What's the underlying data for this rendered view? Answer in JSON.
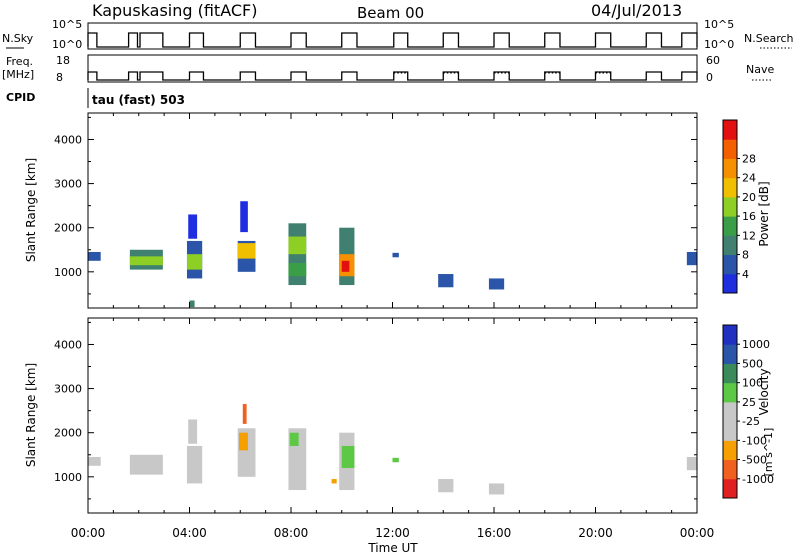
{
  "header": {
    "station": "Kapuskasing (fitACF)",
    "beam": "Beam 00",
    "date": "04/Jul/2013"
  },
  "top_panels": {
    "nsky_label": "N.Sky",
    "nsky_ticks": [
      "10^5",
      "10^0"
    ],
    "nsearch_label": "N.Search",
    "nsearch_ticks": [
      "10^5",
      "10^0"
    ],
    "freq_label": "Freq.",
    "freq_unit": "[MHz]",
    "freq_ticks": [
      "18",
      "8"
    ],
    "nave_label": "Nave",
    "nave_ticks": [
      "60",
      "0"
    ],
    "cpid_label": "CPID",
    "cpid_value": "tau (fast) 503"
  },
  "colors": {
    "power": [
      "#1f2fe0",
      "#2a55a8",
      "#3f8070",
      "#3a9d48",
      "#8ecf25",
      "#f0c000",
      "#f59000",
      "#f46000",
      "#e21010"
    ],
    "velocity": [
      "#e02020",
      "#f06020",
      "#f5a000",
      "#c8c8c8",
      "#c8c8c8",
      "#5cc845",
      "#3a8a5a",
      "#2a55a8",
      "#2030c0"
    ]
  },
  "chart_data": [
    {
      "type": "heatmap",
      "name": "power",
      "ylabel": "Slant Range [km]",
      "yticks": [
        "1000",
        "2000",
        "3000",
        "4000"
      ],
      "ylim": [
        180,
        4600
      ],
      "xlim": [
        0,
        24
      ],
      "colorbar_label": "Power [dB]",
      "colorbar_ticks": [
        "4",
        "8",
        "12",
        "16",
        "20",
        "24",
        "28"
      ],
      "patches": [
        {
          "x0": 0.0,
          "x1": 0.5,
          "r0": 1250,
          "r1": 1450,
          "c": 1
        },
        {
          "x0": 1.65,
          "x1": 2.95,
          "r0": 1050,
          "r1": 1500,
          "c": 2
        },
        {
          "x0": 1.65,
          "x1": 2.95,
          "r0": 1150,
          "r1": 1350,
          "c": 4
        },
        {
          "x0": 3.9,
          "x1": 4.5,
          "r0": 850,
          "r1": 1700,
          "c": 1
        },
        {
          "x0": 3.9,
          "x1": 4.5,
          "r0": 1050,
          "r1": 1400,
          "c": 4
        },
        {
          "x0": 3.95,
          "x1": 4.3,
          "r0": 1750,
          "r1": 2300,
          "c": 0
        },
        {
          "x0": 5.9,
          "x1": 6.6,
          "r0": 1000,
          "r1": 1700,
          "c": 1
        },
        {
          "x0": 5.9,
          "x1": 6.6,
          "r0": 1300,
          "r1": 1650,
          "c": 5
        },
        {
          "x0": 6.0,
          "x1": 6.3,
          "r0": 1900,
          "r1": 2600,
          "c": 0
        },
        {
          "x0": 7.9,
          "x1": 8.6,
          "r0": 700,
          "r1": 2100,
          "c": 2
        },
        {
          "x0": 7.9,
          "x1": 8.6,
          "r0": 1400,
          "r1": 1800,
          "c": 4
        },
        {
          "x0": 7.9,
          "x1": 8.6,
          "r0": 900,
          "r1": 1200,
          "c": 3
        },
        {
          "x0": 9.9,
          "x1": 10.5,
          "r0": 700,
          "r1": 2000,
          "c": 2
        },
        {
          "x0": 9.9,
          "x1": 10.5,
          "r0": 900,
          "r1": 1400,
          "c": 6
        },
        {
          "x0": 10.0,
          "x1": 10.3,
          "r0": 1000,
          "r1": 1250,
          "c": 8
        },
        {
          "x0": 12.0,
          "x1": 12.25,
          "r0": 1330,
          "r1": 1430,
          "c": 1
        },
        {
          "x0": 13.8,
          "x1": 14.4,
          "r0": 650,
          "r1": 950,
          "c": 1
        },
        {
          "x0": 15.8,
          "x1": 16.4,
          "r0": 600,
          "r1": 850,
          "c": 1
        },
        {
          "x0": 23.6,
          "x1": 24.0,
          "r0": 1150,
          "r1": 1450,
          "c": 1
        },
        {
          "x0": 4.0,
          "x1": 4.2,
          "r0": 200,
          "r1": 350,
          "c": 2
        }
      ]
    },
    {
      "type": "heatmap",
      "name": "velocity",
      "xlabel": "Time UT",
      "xticks": [
        "00:00",
        "04:00",
        "08:00",
        "12:00",
        "16:00",
        "20:00",
        "00:00"
      ],
      "ylabel": "Slant Range [km]",
      "yticks": [
        "1000",
        "2000",
        "3000",
        "4000"
      ],
      "ylim": [
        180,
        4600
      ],
      "xlim": [
        0,
        24
      ],
      "colorbar_label": "Velocity",
      "colorbar_unit": "[m s^-1]",
      "colorbar_ticks": [
        "1000",
        "500",
        "100",
        "25",
        "-25",
        "-100",
        "-500",
        "-1000"
      ],
      "patches": [
        {
          "x0": 0.0,
          "x1": 0.5,
          "r0": 1250,
          "r1": 1450,
          "c": 3
        },
        {
          "x0": 1.65,
          "x1": 2.95,
          "r0": 1050,
          "r1": 1500,
          "c": 3
        },
        {
          "x0": 3.9,
          "x1": 4.5,
          "r0": 850,
          "r1": 1700,
          "c": 3
        },
        {
          "x0": 3.95,
          "x1": 4.3,
          "r0": 1750,
          "r1": 2300,
          "c": 3
        },
        {
          "x0": 5.9,
          "x1": 6.6,
          "r0": 1000,
          "r1": 2100,
          "c": 3
        },
        {
          "x0": 5.95,
          "x1": 6.3,
          "r0": 1600,
          "r1": 2000,
          "c": 2
        },
        {
          "x0": 6.1,
          "x1": 6.25,
          "r0": 2200,
          "r1": 2650,
          "c": 1
        },
        {
          "x0": 7.9,
          "x1": 8.6,
          "r0": 700,
          "r1": 2100,
          "c": 3
        },
        {
          "x0": 7.95,
          "x1": 8.3,
          "r0": 1700,
          "r1": 2000,
          "c": 5
        },
        {
          "x0": 9.9,
          "x1": 10.5,
          "r0": 700,
          "r1": 2000,
          "c": 3
        },
        {
          "x0": 10.0,
          "x1": 10.5,
          "r0": 1200,
          "r1": 1700,
          "c": 5
        },
        {
          "x0": 12.0,
          "x1": 12.25,
          "r0": 1330,
          "r1": 1430,
          "c": 5
        },
        {
          "x0": 13.8,
          "x1": 14.4,
          "r0": 650,
          "r1": 950,
          "c": 3
        },
        {
          "x0": 15.8,
          "x1": 16.4,
          "r0": 600,
          "r1": 850,
          "c": 3
        },
        {
          "x0": 23.6,
          "x1": 24.0,
          "r0": 1150,
          "r1": 1450,
          "c": 3
        },
        {
          "x0": 9.6,
          "x1": 9.8,
          "r0": 850,
          "r1": 950,
          "c": 2
        }
      ]
    }
  ]
}
